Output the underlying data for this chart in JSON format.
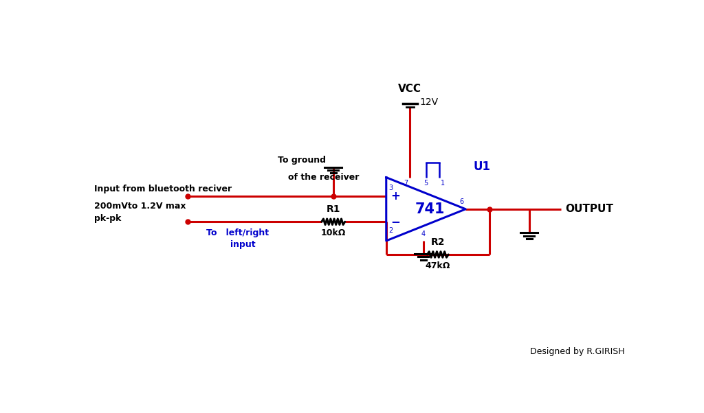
{
  "bg_color": "#ffffff",
  "wire_color": "#cc0000",
  "component_color": "#0000cc",
  "text_color_black": "#000000",
  "text_color_blue": "#0000cc",
  "vcc_label": "VCC",
  "vcc_voltage": "12V",
  "opamp_label": "741",
  "opamp_id": "U1",
  "r1_label": "R1",
  "r1_value": "10kΩ",
  "r2_label": "R2",
  "r2_value": "47kΩ",
  "output_label": "OUTPUT",
  "input_label1": "Input from bluetooth reciver",
  "input_label2": "200mVto 1.2V max",
  "input_label3": "pk-pk",
  "ground_label1": "To ground",
  "ground_label2": "of the receiver",
  "lr_label1": "To   left/right",
  "lr_label2": "        input",
  "designer": "Designed by R.GIRISH",
  "pin3": "3",
  "pin2": "2",
  "pin6": "6",
  "pin7": "7",
  "pin4": "4",
  "pin5": "5",
  "pin1": "1",
  "plus_sign": "+",
  "minus_sign": "−"
}
